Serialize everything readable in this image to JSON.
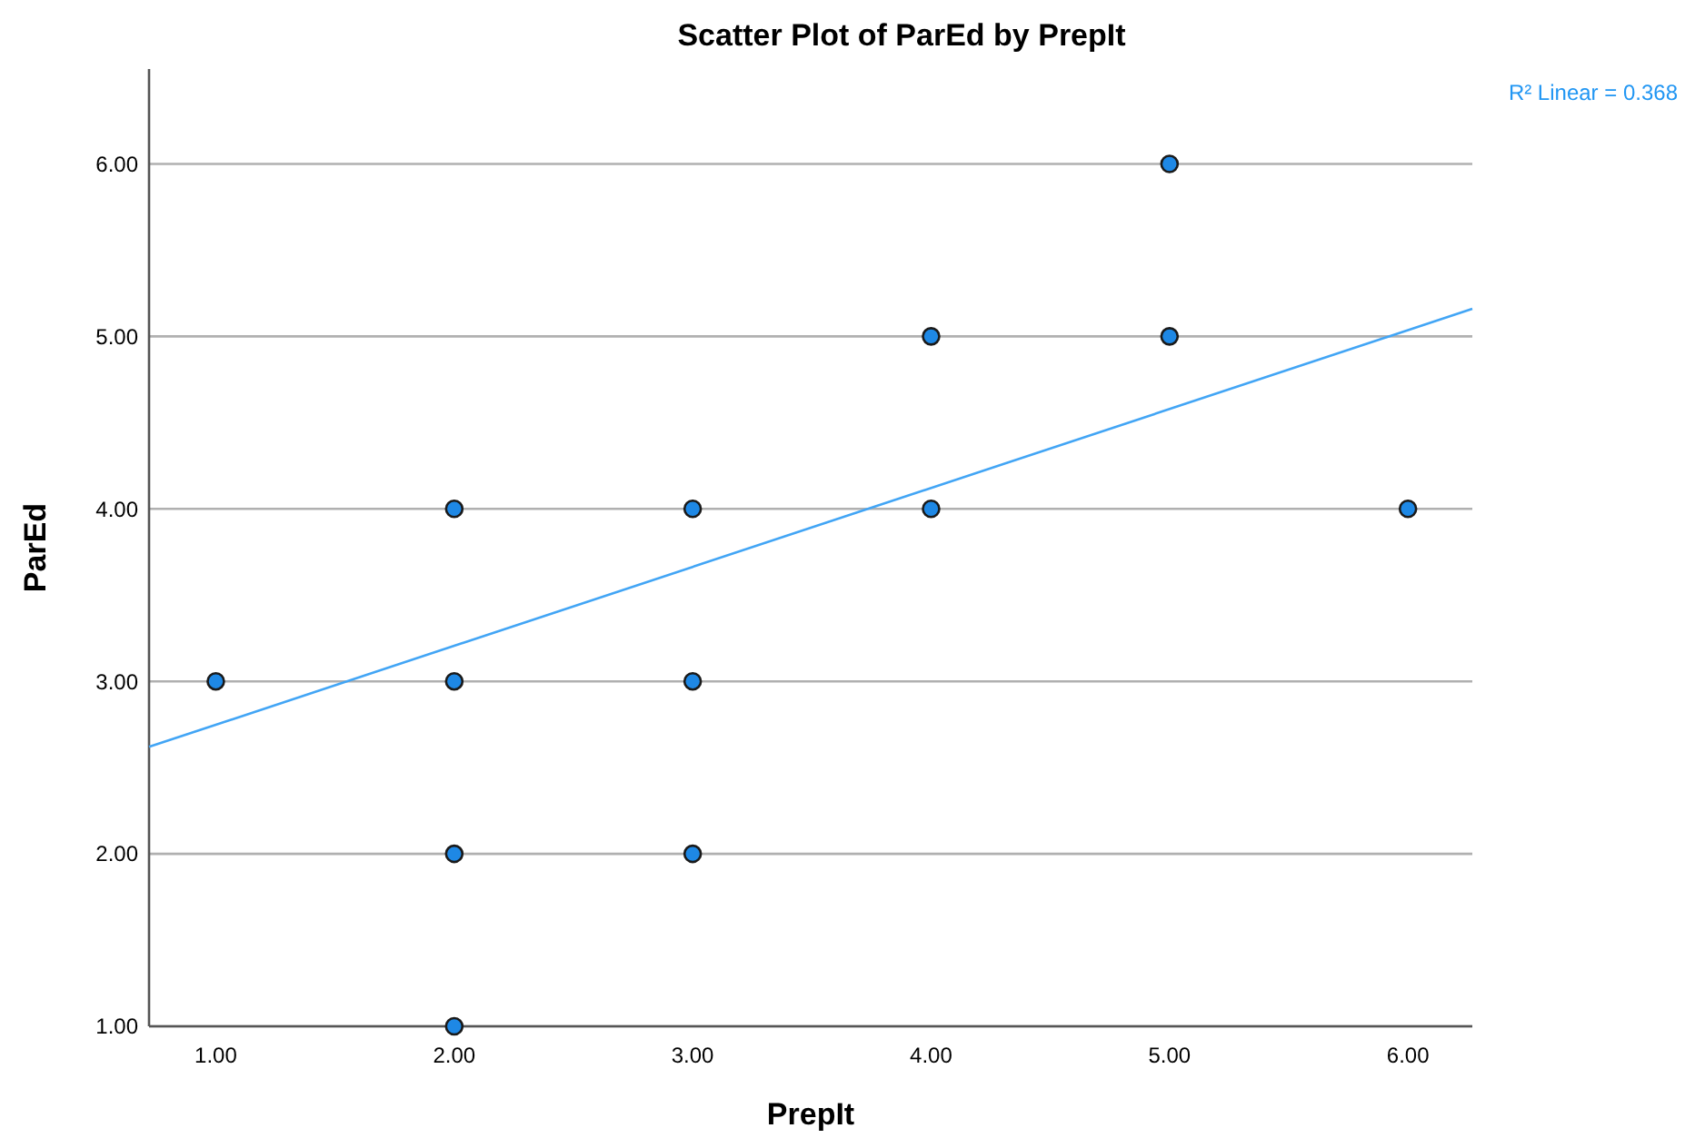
{
  "chart_data": {
    "type": "scatter",
    "title": "Scatter Plot of ParEd by PrepIt",
    "xlabel": "PrepIt",
    "ylabel": "ParEd",
    "annotations": [
      "R² Linear = 0.368"
    ],
    "series": [
      {
        "color": "#1e88e5",
        "x": [
          1,
          2,
          2,
          2,
          2,
          3,
          3,
          3,
          4,
          4,
          5,
          5,
          6
        ],
        "values": [
          3,
          4,
          3,
          2,
          1,
          4,
          3,
          2,
          5,
          4,
          6,
          5,
          4
        ],
        "marker": "circle"
      },
      {
        "type": "line",
        "color": "#42a5f5",
        "x": [
          0.72,
          6.27
        ],
        "values": [
          2.62,
          5.16
        ],
        "marker": "none"
      }
    ],
    "xlim": [
      0.72,
      6.27
    ],
    "ylim": [
      1,
      6.55
    ],
    "xticks": [
      {
        "value": 1,
        "label": "1.00"
      },
      {
        "value": 2,
        "label": "2.00"
      },
      {
        "value": 3,
        "label": "3.00"
      },
      {
        "value": 4,
        "label": "4.00"
      },
      {
        "value": 5,
        "label": "5.00"
      },
      {
        "value": 6,
        "label": "6.00"
      }
    ],
    "yticks": [
      {
        "value": 1,
        "label": "1.00"
      },
      {
        "value": 2,
        "label": "2.00"
      },
      {
        "value": 3,
        "label": "3.00"
      },
      {
        "value": 4,
        "label": "4.00"
      },
      {
        "value": 5,
        "label": "5.00"
      },
      {
        "value": 6,
        "label": "6.00"
      }
    ],
    "grid": "y"
  }
}
